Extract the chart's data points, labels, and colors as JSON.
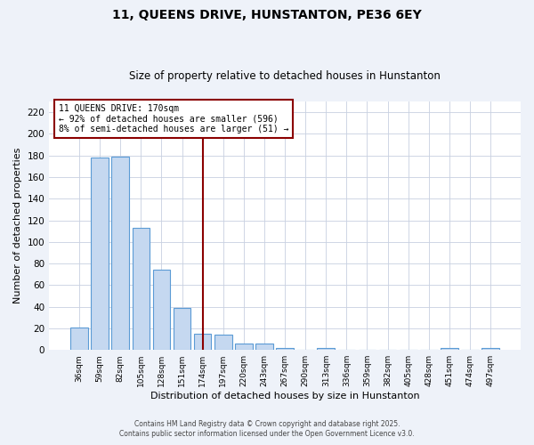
{
  "title1": "11, QUEENS DRIVE, HUNSTANTON, PE36 6EY",
  "title2": "Size of property relative to detached houses in Hunstanton",
  "xlabel": "Distribution of detached houses by size in Hunstanton",
  "ylabel": "Number of detached properties",
  "categories": [
    "36sqm",
    "59sqm",
    "82sqm",
    "105sqm",
    "128sqm",
    "151sqm",
    "174sqm",
    "197sqm",
    "220sqm",
    "243sqm",
    "267sqm",
    "290sqm",
    "313sqm",
    "336sqm",
    "359sqm",
    "382sqm",
    "405sqm",
    "428sqm",
    "451sqm",
    "474sqm",
    "497sqm"
  ],
  "values": [
    21,
    178,
    179,
    113,
    74,
    39,
    15,
    14,
    6,
    6,
    2,
    0,
    2,
    0,
    0,
    0,
    0,
    0,
    2,
    0,
    2
  ],
  "bar_color": "#c5d8f0",
  "bar_edge_color": "#5b9bd5",
  "vline_color": "#8b0000",
  "vline_index": 6,
  "annotation_text": "11 QUEENS DRIVE: 170sqm\n← 92% of detached houses are smaller (596)\n8% of semi-detached houses are larger (51) →",
  "annotation_box_edge_color": "#8b0000",
  "annotation_box_bg": "#ffffff",
  "ylim": [
    0,
    230
  ],
  "yticks": [
    0,
    20,
    40,
    60,
    80,
    100,
    120,
    140,
    160,
    180,
    200,
    220
  ],
  "footer1": "Contains HM Land Registry data © Crown copyright and database right 2025.",
  "footer2": "Contains public sector information licensed under the Open Government Licence v3.0.",
  "bg_color": "#eef2f9",
  "plot_bg_color": "#ffffff",
  "grid_color": "#c8d0e0"
}
